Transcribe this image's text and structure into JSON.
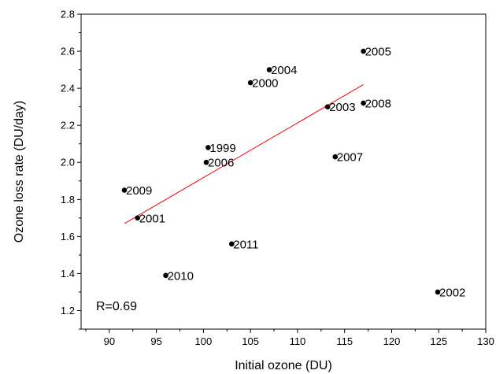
{
  "chart_data": {
    "type": "scatter",
    "title": "",
    "xlabel": "Initial ozone (DU)",
    "ylabel": "Ozone loss rate (DU/day)",
    "xlim": [
      87,
      130
    ],
    "ylim": [
      1.1,
      2.8
    ],
    "xticks": [
      90,
      95,
      100,
      105,
      110,
      115,
      120,
      125,
      130
    ],
    "yticks": [
      1.2,
      1.4,
      1.6,
      1.8,
      2.0,
      2.2,
      2.4,
      2.6,
      2.8
    ],
    "grid": false,
    "marker_color": "#000000",
    "fit_color": "#ff0000",
    "points": [
      {
        "label": "1999",
        "x": 100.5,
        "y": 2.08
      },
      {
        "label": "2000",
        "x": 105.0,
        "y": 2.43
      },
      {
        "label": "2001",
        "x": 93.0,
        "y": 1.7
      },
      {
        "label": "2002",
        "x": 124.9,
        "y": 1.3
      },
      {
        "label": "2003",
        "x": 113.2,
        "y": 2.3
      },
      {
        "label": "2004",
        "x": 107.0,
        "y": 2.5
      },
      {
        "label": "2005",
        "x": 117.0,
        "y": 2.6
      },
      {
        "label": "2006",
        "x": 100.3,
        "y": 2.0
      },
      {
        "label": "2007",
        "x": 114.0,
        "y": 2.03
      },
      {
        "label": "2008",
        "x": 117.0,
        "y": 2.32
      },
      {
        "label": "2009",
        "x": 91.6,
        "y": 1.85
      },
      {
        "label": "2010",
        "x": 96.0,
        "y": 1.39
      },
      {
        "label": "2011",
        "x": 103.0,
        "y": 1.56
      }
    ],
    "fit_line": {
      "x": [
        91.6,
        117.0
      ],
      "y": [
        1.67,
        2.42
      ]
    },
    "annotation": "R=0.69"
  }
}
